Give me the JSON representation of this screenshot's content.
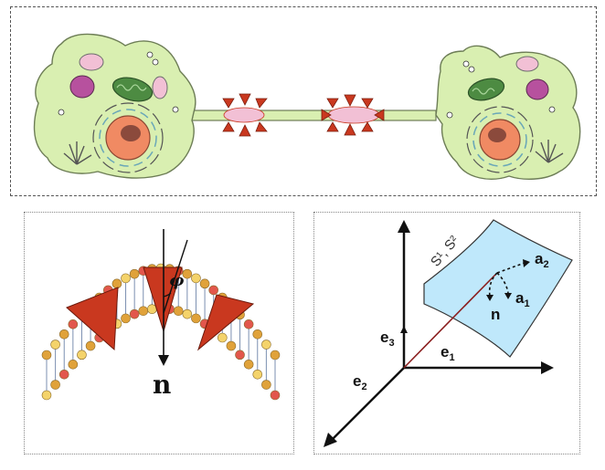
{
  "colors": {
    "cell_body": "#d9efb1",
    "cell_outline": "#6d7d56",
    "nucleus": "#f08a63",
    "nucleolus": "#8b4a3c",
    "mitochondrion": "#4d8b42",
    "vesicle_purple": "#b7519e",
    "vesicle_pink": "#f2c0d5",
    "cone_red": "#c9381f",
    "membrane_surface": "#bfe8fb",
    "position_vector": "#8b1f1f",
    "lipid_head_orange": "#e0a23a",
    "lipid_head_yellow": "#f4d36b",
    "lipid_head_red": "#e2574c"
  },
  "icons": {
    "top": [
      "cell-icon",
      "mitochondrion-icon",
      "nucleus-icon",
      "tether-icon",
      "inclusion-cone-icon"
    ],
    "left": [
      "bilayer-icon",
      "cone-inclusion-icon",
      "normal-arrow-icon"
    ],
    "right": [
      "axis-arrow-icon",
      "surface-icon",
      "tangent-vector-icon"
    ]
  },
  "left_panel": {
    "normal_label": "n",
    "angle_label": "φ"
  },
  "right_panel": {
    "surface_label": "S¹, S²",
    "e1": "e",
    "e1_sub": "1",
    "e2": "e",
    "e2_sub": "2",
    "e3": "e",
    "e3_sub": "3",
    "a1": "a",
    "a1_sub": "1",
    "a2": "a",
    "a2_sub": "2",
    "n": "n"
  }
}
